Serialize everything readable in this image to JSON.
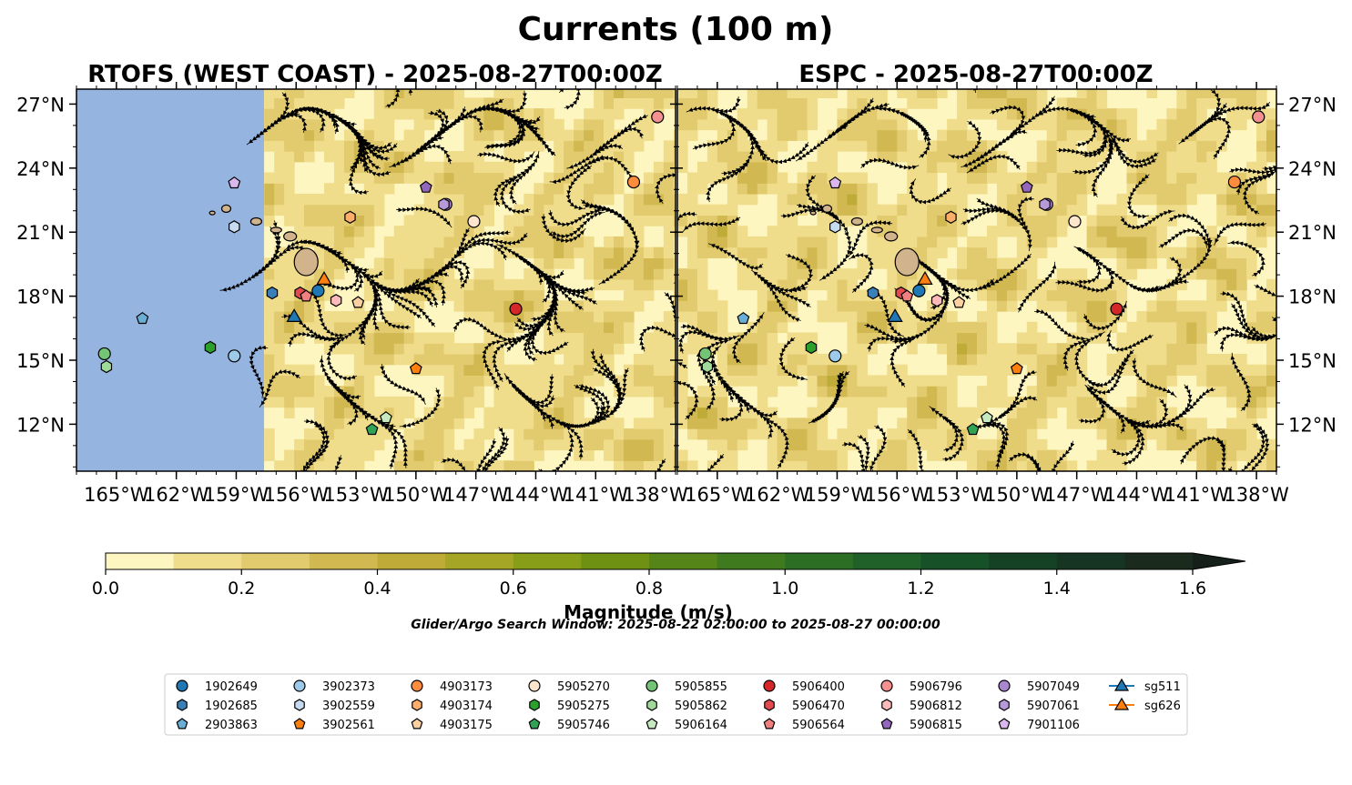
{
  "title": "Currents (100 m)",
  "note": "Glider/Argo Search Window: 2025-08-22 02:00:00 to 2025-08-27 00:00:00",
  "chart_data": {
    "type": "map",
    "x_range": [
      -167,
      -137
    ],
    "y_range": [
      9.8,
      27.7
    ],
    "panels": [
      {
        "name": "rtofs",
        "title": "RTOFS (WEST COAST) - 2025-08-27T00:00Z",
        "data_coverage_west_lon": -157.6,
        "y_ticks_side": "left"
      },
      {
        "name": "espc",
        "title": "ESPC - 2025-08-27T00:00Z",
        "data_coverage_west_lon": -167,
        "y_ticks_side": "right"
      }
    ],
    "x_ticks": [
      -165,
      -162,
      -159,
      -156,
      -153,
      -150,
      -147,
      -144,
      -141,
      -138
    ],
    "x_tick_labels": [
      "165°W",
      "162°W",
      "159°W",
      "156°W",
      "153°W",
      "150°W",
      "147°W",
      "144°W",
      "141°W",
      "138°W"
    ],
    "y_ticks": [
      12,
      15,
      18,
      21,
      24,
      27
    ],
    "y_tick_labels": [
      "12°N",
      "15°N",
      "18°N",
      "21°N",
      "24°N",
      "27°N"
    ],
    "colorbar": {
      "label": "Magnitude (m/s)",
      "min": 0.0,
      "max": 1.6,
      "step": 0.1,
      "extend": "max",
      "ticks": [
        0.0,
        0.2,
        0.4,
        0.6,
        0.8,
        1.0,
        1.2,
        1.4,
        1.6
      ],
      "tick_labels": [
        "0.0",
        "0.2",
        "0.4",
        "0.6",
        "0.8",
        "1.0",
        "1.2",
        "1.4",
        "1.6"
      ],
      "colors": [
        "#fdf6c0",
        "#f0dd8c",
        "#e2ca6e",
        "#d1b851",
        "#bfab38",
        "#a5a526",
        "#889d18",
        "#6f9113",
        "#558518",
        "#3f7a1f",
        "#2d6e25",
        "#1f6128",
        "#175127",
        "#154225",
        "#163522",
        "#1a2a1c"
      ],
      "extend_color": "#16201a"
    },
    "islands": [
      {
        "name": "hawaii",
        "lon": -155.5,
        "lat": 19.6
      },
      {
        "name": "maui",
        "lon": -156.3,
        "lat": 20.8
      },
      {
        "name": "molokai",
        "lon": -157.0,
        "lat": 21.1
      },
      {
        "name": "oahu",
        "lon": -158.0,
        "lat": 21.5
      },
      {
        "name": "kauai",
        "lon": -159.5,
        "lat": 22.1
      },
      {
        "name": "niihau",
        "lon": -160.2,
        "lat": 21.9
      }
    ],
    "series": [
      {
        "name": "1902649",
        "marker": "circle",
        "color": "#1f77b4",
        "lon": -154.9,
        "lat": 18.25
      },
      {
        "name": "1902685",
        "marker": "hexagon",
        "color": "#3a7fb8",
        "lon": -157.2,
        "lat": 18.15
      },
      {
        "name": "2903863",
        "marker": "pentagon",
        "color": "#6aaed6",
        "lon": -163.7,
        "lat": 16.95
      },
      {
        "name": "3902373",
        "marker": "circle",
        "color": "#9ecae9",
        "lon": -159.1,
        "lat": 15.2
      },
      {
        "name": "3902559",
        "marker": "hexagon",
        "color": "#c6dbef",
        "lon": -159.1,
        "lat": 21.25
      },
      {
        "name": "3902561",
        "marker": "pentagon",
        "color": "#ff7f0e",
        "lon": -150.0,
        "lat": 14.6
      },
      {
        "name": "4903173",
        "marker": "circle",
        "color": "#fd8d3c",
        "lon": -139.1,
        "lat": 23.35
      },
      {
        "name": "4903174",
        "marker": "hexagon",
        "color": "#fdae6b",
        "lon": -153.3,
        "lat": 21.7
      },
      {
        "name": "4903175",
        "marker": "pentagon",
        "color": "#fdd0a2",
        "lon": -152.9,
        "lat": 17.7
      },
      {
        "name": "5905270",
        "marker": "circle",
        "color": "#fee6ce",
        "lon": -147.1,
        "lat": 21.5
      },
      {
        "name": "5905275",
        "marker": "hexagon",
        "color": "#2ca02c",
        "lon": -160.3,
        "lat": 15.6
      },
      {
        "name": "5905746",
        "marker": "pentagon",
        "color": "#31a354",
        "lon": -152.2,
        "lat": 11.75
      },
      {
        "name": "5905855",
        "marker": "circle",
        "color": "#74c476",
        "lon": -165.6,
        "lat": 15.3
      },
      {
        "name": "5905862",
        "marker": "hexagon",
        "color": "#a1d99b",
        "lon": -165.5,
        "lat": 14.7
      },
      {
        "name": "5906164",
        "marker": "pentagon",
        "color": "#c7e9c0",
        "lon": -151.5,
        "lat": 12.3
      },
      {
        "name": "5906400",
        "marker": "circle",
        "color": "#d62728",
        "lon": -145.0,
        "lat": 17.4
      },
      {
        "name": "5906470",
        "marker": "hexagon",
        "color": "#e34a4f",
        "lon": -155.8,
        "lat": 18.15
      },
      {
        "name": "5906564",
        "marker": "pentagon",
        "color": "#f08080",
        "lon": -155.5,
        "lat": 18.0
      },
      {
        "name": "5906796",
        "marker": "circle",
        "color": "#f49090",
        "lon": -137.9,
        "lat": 26.4
      },
      {
        "name": "5906812",
        "marker": "hexagon",
        "color": "#fcbaba",
        "lon": -154.0,
        "lat": 17.8
      },
      {
        "name": "5906815",
        "marker": "pentagon",
        "color": "#9467bd",
        "lon": -149.5,
        "lat": 23.1
      },
      {
        "name": "5907049",
        "marker": "circle",
        "color": "#a987cf",
        "lon": -148.5,
        "lat": 22.3
      },
      {
        "name": "5907061",
        "marker": "hexagon",
        "color": "#b699d9",
        "lon": -148.6,
        "lat": 22.3
      },
      {
        "name": "7901106",
        "marker": "pentagon",
        "color": "#dab8ee",
        "lon": -159.1,
        "lat": 23.3
      },
      {
        "name": "sg511",
        "marker": "triangle",
        "color": "#1f77b4",
        "lon": -156.1,
        "lat": 17.0
      },
      {
        "name": "sg626",
        "marker": "triangle",
        "color": "#ff7f0e",
        "lon": -154.6,
        "lat": 18.75
      }
    ],
    "legend_placement": "bottom-center"
  }
}
